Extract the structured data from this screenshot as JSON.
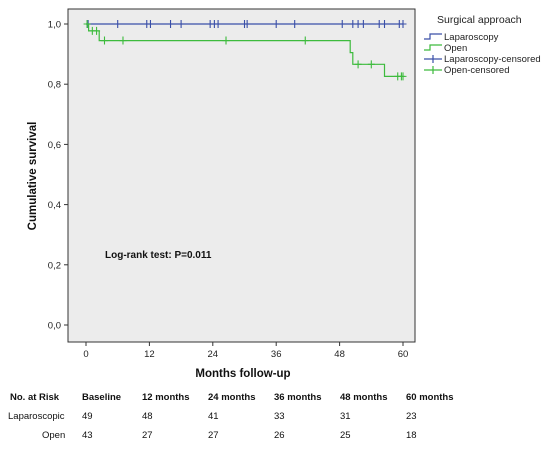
{
  "chart_data": {
    "type": "line",
    "step": true,
    "xlabel": "Months follow-up",
    "ylabel": "Cumulative survival",
    "xlim": [
      0,
      60
    ],
    "ylim": [
      0,
      1
    ],
    "x_ticks": [
      "0",
      "12",
      "24",
      "36",
      "48",
      "60"
    ],
    "y_ticks": [
      "0,0",
      "0,2",
      "0,4",
      "0,6",
      "0,8",
      "1,0"
    ],
    "grid": false,
    "background": "#ececec",
    "annotation": "Log-rank test: P=0.011",
    "legend": {
      "title": "Surgical approach",
      "placement": "right",
      "entries": [
        "Laparoscopy",
        "Open",
        "Laparoscopy-censored",
        "Open-censored"
      ]
    },
    "series": [
      {
        "name": "Laparoscopy",
        "color": "#3a4fa8",
        "points": [
          [
            0,
            1.0
          ],
          [
            60,
            1.0
          ]
        ],
        "censored": [
          [
            0.4,
            1.0
          ],
          [
            6,
            1.0
          ],
          [
            11.5,
            1.0
          ],
          [
            12.2,
            1.0
          ],
          [
            16,
            1.0
          ],
          [
            18,
            1.0
          ],
          [
            23.5,
            1.0
          ],
          [
            24.3,
            1.0
          ],
          [
            25,
            1.0
          ],
          [
            30,
            1.0
          ],
          [
            30.5,
            1.0
          ],
          [
            36,
            1.0
          ],
          [
            39.5,
            1.0
          ],
          [
            48.5,
            1.0
          ],
          [
            50.5,
            1.0
          ],
          [
            51.5,
            1.0
          ],
          [
            52.5,
            1.0
          ],
          [
            55.5,
            1.0
          ],
          [
            56.5,
            1.0
          ],
          [
            59.3,
            1.0
          ],
          [
            60,
            1.0
          ]
        ]
      },
      {
        "name": "Open",
        "color": "#3dbb3d",
        "points": [
          [
            0,
            1.0
          ],
          [
            0.5,
            1.0
          ],
          [
            0.5,
            0.977
          ],
          [
            2.5,
            0.977
          ],
          [
            2.5,
            0.945
          ],
          [
            50,
            0.945
          ],
          [
            50,
            0.905
          ],
          [
            50.5,
            0.905
          ],
          [
            50.5,
            0.866
          ],
          [
            56.5,
            0.866
          ],
          [
            56.5,
            0.826
          ],
          [
            60,
            0.826
          ]
        ],
        "censored": [
          [
            0.2,
            1.0
          ],
          [
            1.2,
            0.977
          ],
          [
            2,
            0.977
          ],
          [
            3.5,
            0.945
          ],
          [
            7,
            0.945
          ],
          [
            26.5,
            0.945
          ],
          [
            41.5,
            0.945
          ],
          [
            51.5,
            0.866
          ],
          [
            54,
            0.866
          ],
          [
            59,
            0.826
          ],
          [
            59.7,
            0.826
          ],
          [
            60,
            0.826
          ]
        ]
      }
    ]
  },
  "risk_table": {
    "header": "No. at Risk",
    "columns": [
      "Baseline",
      "12 months",
      "24 months",
      "36 months",
      "48 months",
      "60 months"
    ],
    "rows": [
      {
        "label": "Laparoscopic",
        "values": [
          "49",
          "48",
          "41",
          "33",
          "31",
          "23"
        ]
      },
      {
        "label": "Open",
        "values": [
          "43",
          "27",
          "27",
          "26",
          "25",
          "18"
        ]
      }
    ]
  }
}
